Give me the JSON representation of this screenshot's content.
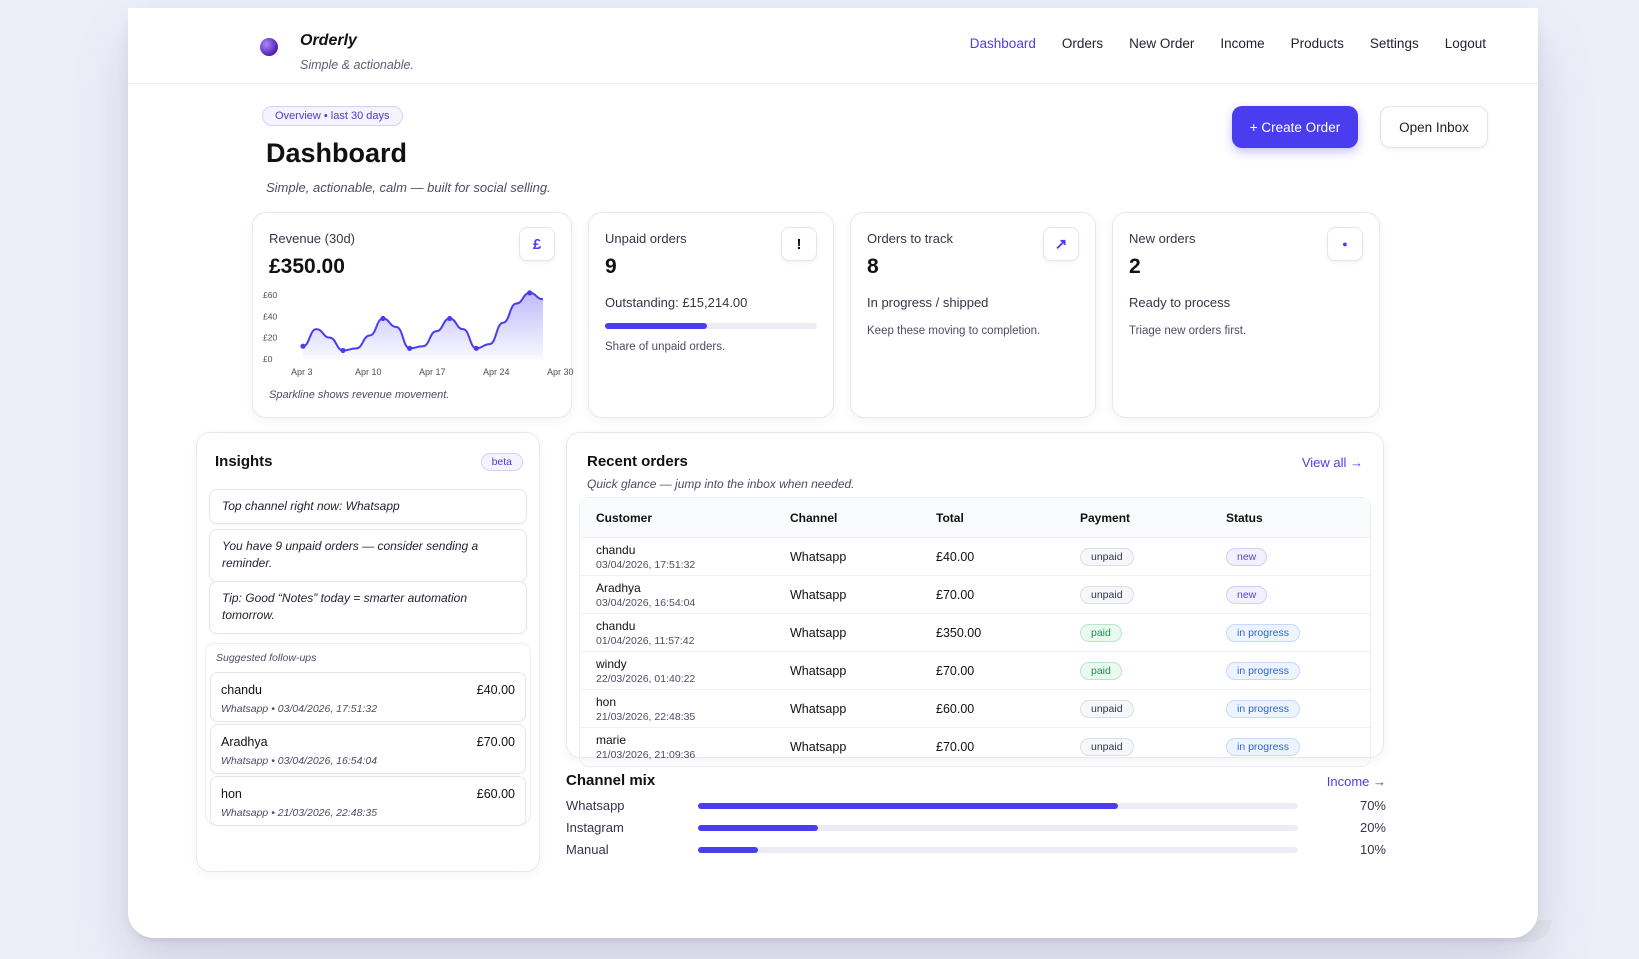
{
  "app": {
    "name": "Orderly",
    "tagline": "Simple & actionable."
  },
  "nav": [
    "Dashboard",
    "Orders",
    "New Order",
    "Income",
    "Products",
    "Settings",
    "Logout"
  ],
  "nav_active": "Dashboard",
  "header": {
    "chip": "Overview • last 30 days",
    "title": "Dashboard",
    "subtitle": "Simple, actionable, calm — built for social selling.",
    "create_order": "+ Create Order",
    "open_inbox": "Open Inbox"
  },
  "kpis": {
    "revenue": {
      "title": "Revenue (30d)",
      "value": "£350.00",
      "icon_glyph": "£",
      "icon": "pound-icon",
      "note": "Sparkline shows revenue movement."
    },
    "unpaid": {
      "title": "Unpaid orders",
      "value": "9",
      "icon_glyph": "!",
      "icon": "alert-icon",
      "outstanding": "Outstanding: £15,214.00",
      "share_fraction": 0.48,
      "note": "Share of unpaid orders."
    },
    "track": {
      "title": "Orders to track",
      "value": "8",
      "icon_glyph": "↗",
      "icon": "arrow-up-right-icon",
      "status": "In progress / shipped",
      "note": "Keep these moving to completion."
    },
    "new": {
      "title": "New orders",
      "value": "2",
      "icon_glyph": "●",
      "icon": "dot-icon",
      "status": "Ready to process",
      "note": "Triage new orders first."
    }
  },
  "chart_data": {
    "type": "area",
    "x_ticks": [
      "Apr 3",
      "Apr 10",
      "Apr 17",
      "Apr 24",
      "Apr 30"
    ],
    "y_ticks": [
      "£0",
      "£20",
      "£40",
      "£60"
    ],
    "ylim": [
      0,
      60
    ],
    "series": [
      {
        "values": [
          12,
          28,
          20,
          8,
          10,
          22,
          38,
          30,
          10,
          12,
          26,
          38,
          28,
          10,
          14,
          34,
          52,
          62,
          56
        ]
      }
    ],
    "color": "#4a3df0"
  },
  "insights": {
    "title": "Insights",
    "badge": "beta",
    "items": [
      "Top channel right now: Whatsapp",
      "You have 9 unpaid orders — consider sending a reminder.",
      "Tip: Good “Notes” today = smarter automation tomorrow."
    ],
    "followups_title": "Suggested follow-ups",
    "followups": [
      {
        "name": "chandu",
        "amount": "£40.00",
        "meta": "Whatsapp • 03/04/2026, 17:51:32"
      },
      {
        "name": "Aradhya",
        "amount": "£70.00",
        "meta": "Whatsapp • 03/04/2026, 16:54:04"
      },
      {
        "name": "hon",
        "amount": "£60.00",
        "meta": "Whatsapp • 21/03/2026, 22:48:35"
      }
    ]
  },
  "recent_orders": {
    "title": "Recent orders",
    "subtitle": "Quick glance — jump into the inbox when needed.",
    "view_all": "View all →",
    "columns": [
      "Customer",
      "Channel",
      "Total",
      "Payment",
      "Status"
    ],
    "rows": [
      {
        "customer": "chandu",
        "date": "03/04/2026, 17:51:32",
        "channel": "Whatsapp",
        "total": "£40.00",
        "payment": "unpaid",
        "status": "new"
      },
      {
        "customer": "Aradhya",
        "date": "03/04/2026, 16:54:04",
        "channel": "Whatsapp",
        "total": "£70.00",
        "payment": "unpaid",
        "status": "new"
      },
      {
        "customer": "chandu",
        "date": "01/04/2026, 11:57:42",
        "channel": "Whatsapp",
        "total": "£350.00",
        "payment": "paid",
        "status": "in progress"
      },
      {
        "customer": "windy",
        "date": "22/03/2026, 01:40:22",
        "channel": "Whatsapp",
        "total": "£70.00",
        "payment": "paid",
        "status": "in progress"
      },
      {
        "customer": "hon",
        "date": "21/03/2026, 22:48:35",
        "channel": "Whatsapp",
        "total": "£60.00",
        "payment": "unpaid",
        "status": "in progress"
      },
      {
        "customer": "marie",
        "date": "21/03/2026, 21:09:36",
        "channel": "Whatsapp",
        "total": "£70.00",
        "payment": "unpaid",
        "status": "in progress"
      }
    ]
  },
  "channel_mix": {
    "title": "Channel mix",
    "link": "Income →",
    "items": [
      {
        "label": "Whatsapp",
        "pct": "70%",
        "value": 0.7
      },
      {
        "label": "Instagram",
        "pct": "20%",
        "value": 0.2
      },
      {
        "label": "Manual",
        "pct": "10%",
        "value": 0.1
      }
    ]
  }
}
